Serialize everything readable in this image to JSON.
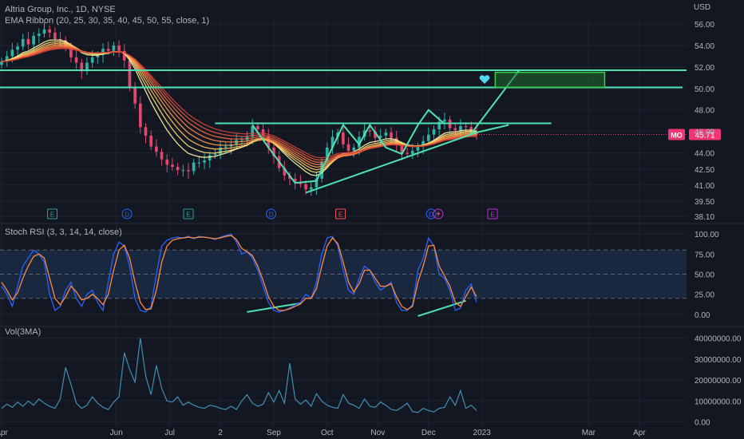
{
  "header": {
    "symbol_line": "Altria Group, Inc., 1D, NYSE",
    "ema_ribbon": "EMA Ribbon (20, 25, 30, 35, 40, 45, 50, 55, close, 1)",
    "stoch_rsi": "Stoch RSI (3, 3, 14, 14, close)",
    "volume": "Vol(3MA)",
    "currency": "USD"
  },
  "colors": {
    "background": "#131722",
    "grid": "#1f2433",
    "text": "#b2b5be",
    "drawing": "#4fe3b4",
    "target_box_border": "#35d24a",
    "target_box_fill": "#1e6d2c",
    "price_badge": "#f23675",
    "stoch_k": "#2962ff",
    "stoch_d": "#ff8a3d",
    "rsi_band": "#1b2b44",
    "volume_line": "#3f8fb3",
    "ribbon": [
      "#fff9a8",
      "#ffe07a",
      "#ffc261",
      "#ffa14f",
      "#ff8344",
      "#f56a3f",
      "#e2543c",
      "#cf4137"
    ]
  },
  "chart_data": [
    {
      "type": "candlestick",
      "title": "Altria Group, Inc., 1D, NYSE",
      "series_overlay": "EMA Ribbon (20, 25, 30, 35, 40, 45, 50, 55, close, 1)",
      "symbol": "MO",
      "last_price": "45.71",
      "ylim": [
        37.8,
        56.6
      ],
      "y_ticks": [
        "56.00",
        "54.00",
        "52.00",
        "50.00",
        "48.00",
        "46.00",
        "44.00",
        "42.50",
        "41.00",
        "39.50",
        "38.10"
      ],
      "x_ticks": [
        "Apr",
        "Jun",
        "Jul",
        "2",
        "Sep",
        "Oct",
        "Nov",
        "Dec",
        "2023",
        "Mar",
        "Apr"
      ],
      "close": [
        52.5,
        53.0,
        53.6,
        53.9,
        54.6,
        54.1,
        54.9,
        55.1,
        55.5,
        55.2,
        54.6,
        54.5,
        53.8,
        52.9,
        52.4,
        51.6,
        52.4,
        52.9,
        53.1,
        53.7,
        53.5,
        54.0,
        53.5,
        52.6,
        50.1,
        48.6,
        46.4,
        45.6,
        44.6,
        44.1,
        43.4,
        42.9,
        42.7,
        42.4,
        42.4,
        42.3,
        43.1,
        43.1,
        43.3,
        43.8,
        43.9,
        44.5,
        44.6,
        44.8,
        45.2,
        45.2,
        45.5,
        46.5,
        46.2,
        45.6,
        44.5,
        43.7,
        42.6,
        41.9,
        41.6,
        41.3,
        41.1,
        40.6,
        40.8,
        41.6,
        43.2,
        44.5,
        45.5,
        45.9,
        44.8,
        44.2,
        44.5,
        45.5,
        46.1,
        46.0,
        45.4,
        45.6,
        45.9,
        45.4,
        44.7,
        44.0,
        43.9,
        44.2,
        44.6,
        45.1,
        45.7,
        46.2,
        46.9,
        47.1,
        46.3,
        46.1,
        46.5,
        46.4,
        46.0,
        45.7
      ],
      "support_trendline": [
        {
          "x": 57,
          "y": 40.3
        },
        {
          "x": 89,
          "y": 45.9
        },
        {
          "x": 95,
          "y": 46.6
        }
      ],
      "resistance_level": 46.75,
      "horizontal_levels": [
        51.7,
        50.1
      ],
      "zigzag": [
        {
          "x": 47,
          "y": 46.6
        },
        {
          "x": 50,
          "y": 44.5
        },
        {
          "x": 55,
          "y": 41.2
        },
        {
          "x": 59,
          "y": 41.4
        },
        {
          "x": 64,
          "y": 46.6
        },
        {
          "x": 67,
          "y": 44.8
        },
        {
          "x": 69,
          "y": 46.6
        },
        {
          "x": 72,
          "y": 44.5
        },
        {
          "x": 75,
          "y": 43.9
        },
        {
          "x": 78,
          "y": 46.6
        },
        {
          "x": 80,
          "y": 48.0
        },
        {
          "x": 83,
          "y": 46.7
        }
      ],
      "projection": [
        {
          "x": 88,
          "y": 45.8
        },
        {
          "x": 97,
          "y": 51.7
        }
      ],
      "target_zone": {
        "y_low": 50.1,
        "y_high": 51.5
      },
      "event_markers": [
        "E",
        "D",
        "E",
        "D",
        "E",
        "D",
        "E"
      ]
    },
    {
      "type": "line",
      "title": "Stoch RSI (3, 3, 14, 14, close)",
      "ylim": [
        -10,
        110
      ],
      "y_ticks": [
        "100.00",
        "75.00",
        "50.00",
        "25.00",
        "0.00"
      ],
      "band": [
        20,
        80
      ],
      "series": [
        {
          "name": "K",
          "values": [
            35,
            25,
            10,
            35,
            60,
            70,
            80,
            75,
            65,
            25,
            5,
            10,
            30,
            40,
            20,
            10,
            25,
            30,
            15,
            5,
            40,
            75,
            90,
            85,
            60,
            20,
            5,
            3,
            10,
            50,
            85,
            92,
            95,
            96,
            95,
            97,
            94,
            97,
            96,
            95,
            93,
            96,
            98,
            100,
            90,
            75,
            78,
            70,
            55,
            35,
            15,
            5,
            3,
            5,
            8,
            12,
            15,
            25,
            20,
            40,
            75,
            95,
            97,
            85,
            55,
            30,
            25,
            45,
            60,
            55,
            40,
            30,
            35,
            40,
            15,
            5,
            5,
            12,
            55,
            70,
            95,
            85,
            50,
            45,
            30,
            5,
            8,
            30,
            38,
            15
          ]
        },
        {
          "name": "D",
          "values": [
            40,
            30,
            18,
            27,
            45,
            60,
            72,
            75,
            70,
            45,
            20,
            12,
            22,
            35,
            28,
            18,
            20,
            25,
            20,
            12,
            25,
            55,
            80,
            86,
            70,
            40,
            15,
            6,
            7,
            30,
            65,
            85,
            92,
            94,
            95,
            96,
            95,
            96,
            96,
            95,
            94,
            95,
            97,
            98,
            93,
            82,
            78,
            73,
            60,
            42,
            22,
            10,
            5,
            5,
            7,
            10,
            13,
            20,
            20,
            32,
            60,
            85,
            95,
            88,
            65,
            40,
            28,
            38,
            55,
            55,
            45,
            35,
            35,
            38,
            22,
            10,
            6,
            10,
            40,
            60,
            85,
            86,
            60,
            48,
            35,
            15,
            10,
            22,
            34,
            22
          ]
        }
      ],
      "divergence_lines": [
        {
          "from": {
            "x": 46,
            "y": 3
          },
          "to": {
            "x": 56,
            "y": 14
          }
        },
        {
          "from": {
            "x": 78,
            "y": -2
          },
          "to": {
            "x": 87,
            "y": 17
          }
        }
      ]
    },
    {
      "type": "line",
      "title": "Vol(3MA)",
      "ylim": [
        -2000000,
        44000000
      ],
      "y_ticks": [
        "40000000.00",
        "30000000.00",
        "20000000.00",
        "10000000.00",
        "0.00"
      ],
      "series": [
        {
          "name": "Volume",
          "values": [
            6500000,
            8500000,
            7000000,
            9500000,
            7500000,
            10000000,
            8000000,
            11000000,
            9000000,
            7500000,
            6500000,
            11000000,
            26000000,
            18000000,
            9000000,
            6500000,
            8000000,
            12000000,
            9000000,
            7000000,
            6000000,
            9500000,
            12000000,
            33000000,
            25000000,
            19000000,
            40000000,
            22000000,
            13000000,
            27000000,
            16000000,
            10000000,
            9500000,
            12000000,
            8000000,
            9500000,
            8000000,
            7000000,
            6500000,
            8000000,
            7500000,
            6500000,
            6000000,
            7500000,
            6000000,
            10000000,
            13000000,
            9000000,
            7500000,
            8500000,
            14000000,
            9500000,
            15000000,
            9000000,
            28000000,
            11000000,
            8500000,
            10500000,
            7500000,
            13500000,
            10000000,
            8000000,
            7000000,
            6500000,
            13000000,
            9000000,
            8000000,
            6500000,
            11000000,
            7500000,
            7000000,
            9500000,
            8000000,
            6000000,
            5500000,
            7000000,
            9000000,
            5000000,
            4500000,
            6500000,
            5500000,
            4800000,
            6500000,
            7000000,
            12000000,
            8000000,
            15000000,
            6500000,
            8000000,
            5500000
          ]
        }
      ]
    }
  ]
}
